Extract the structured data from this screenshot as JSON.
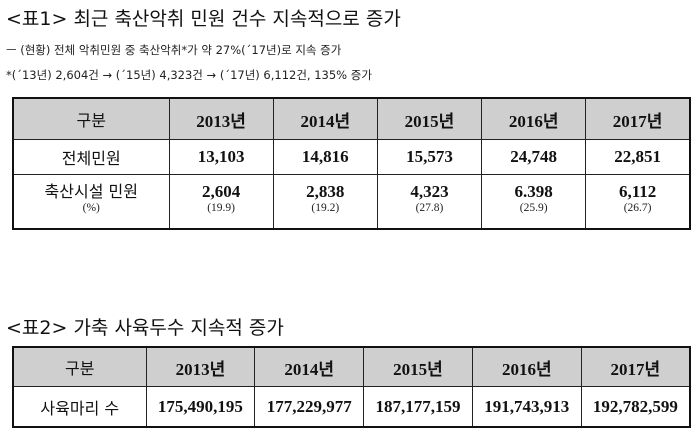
{
  "table1": {
    "title": "<표1> 최근 축산악취 민원 건수 지속적으로 증가",
    "note1": "ㅡ (현황) 전체 악취민원 중 축산악취*가 약 27%(´17년)로 지속 증가",
    "note2": "*(´13년) 2,604건 → (´15년) 4,323건 → (´17년) 6,112건, 135% 증가",
    "header_label": "구분",
    "years": [
      "2013년",
      "2014년",
      "2015년",
      "2016년",
      "2017년"
    ],
    "total_label": "전체민원",
    "total_values": [
      "13,103",
      "14,816",
      "15,573",
      "24,748",
      "22,851"
    ],
    "livestock_label": "축산시설 민원",
    "livestock_values": [
      "2,604",
      "2,838",
      "4,323",
      "6.398",
      "6,112"
    ],
    "pct_label": "(%)",
    "pct_values": [
      "(19.9)",
      "(19.2)",
      "(27.8)",
      "(25.9)",
      "(26.7)"
    ]
  },
  "table2": {
    "title": "<표2> 가축 사육두수 지속적 증가",
    "header_label": "구분",
    "years": [
      "2013년",
      "2014년",
      "2015년",
      "2016년",
      "2017년"
    ],
    "row_label": "사육마리 수",
    "values": [
      "175,490,195",
      "177,229,977",
      "187,177,159",
      "191,743,913",
      "192,782,599"
    ]
  }
}
